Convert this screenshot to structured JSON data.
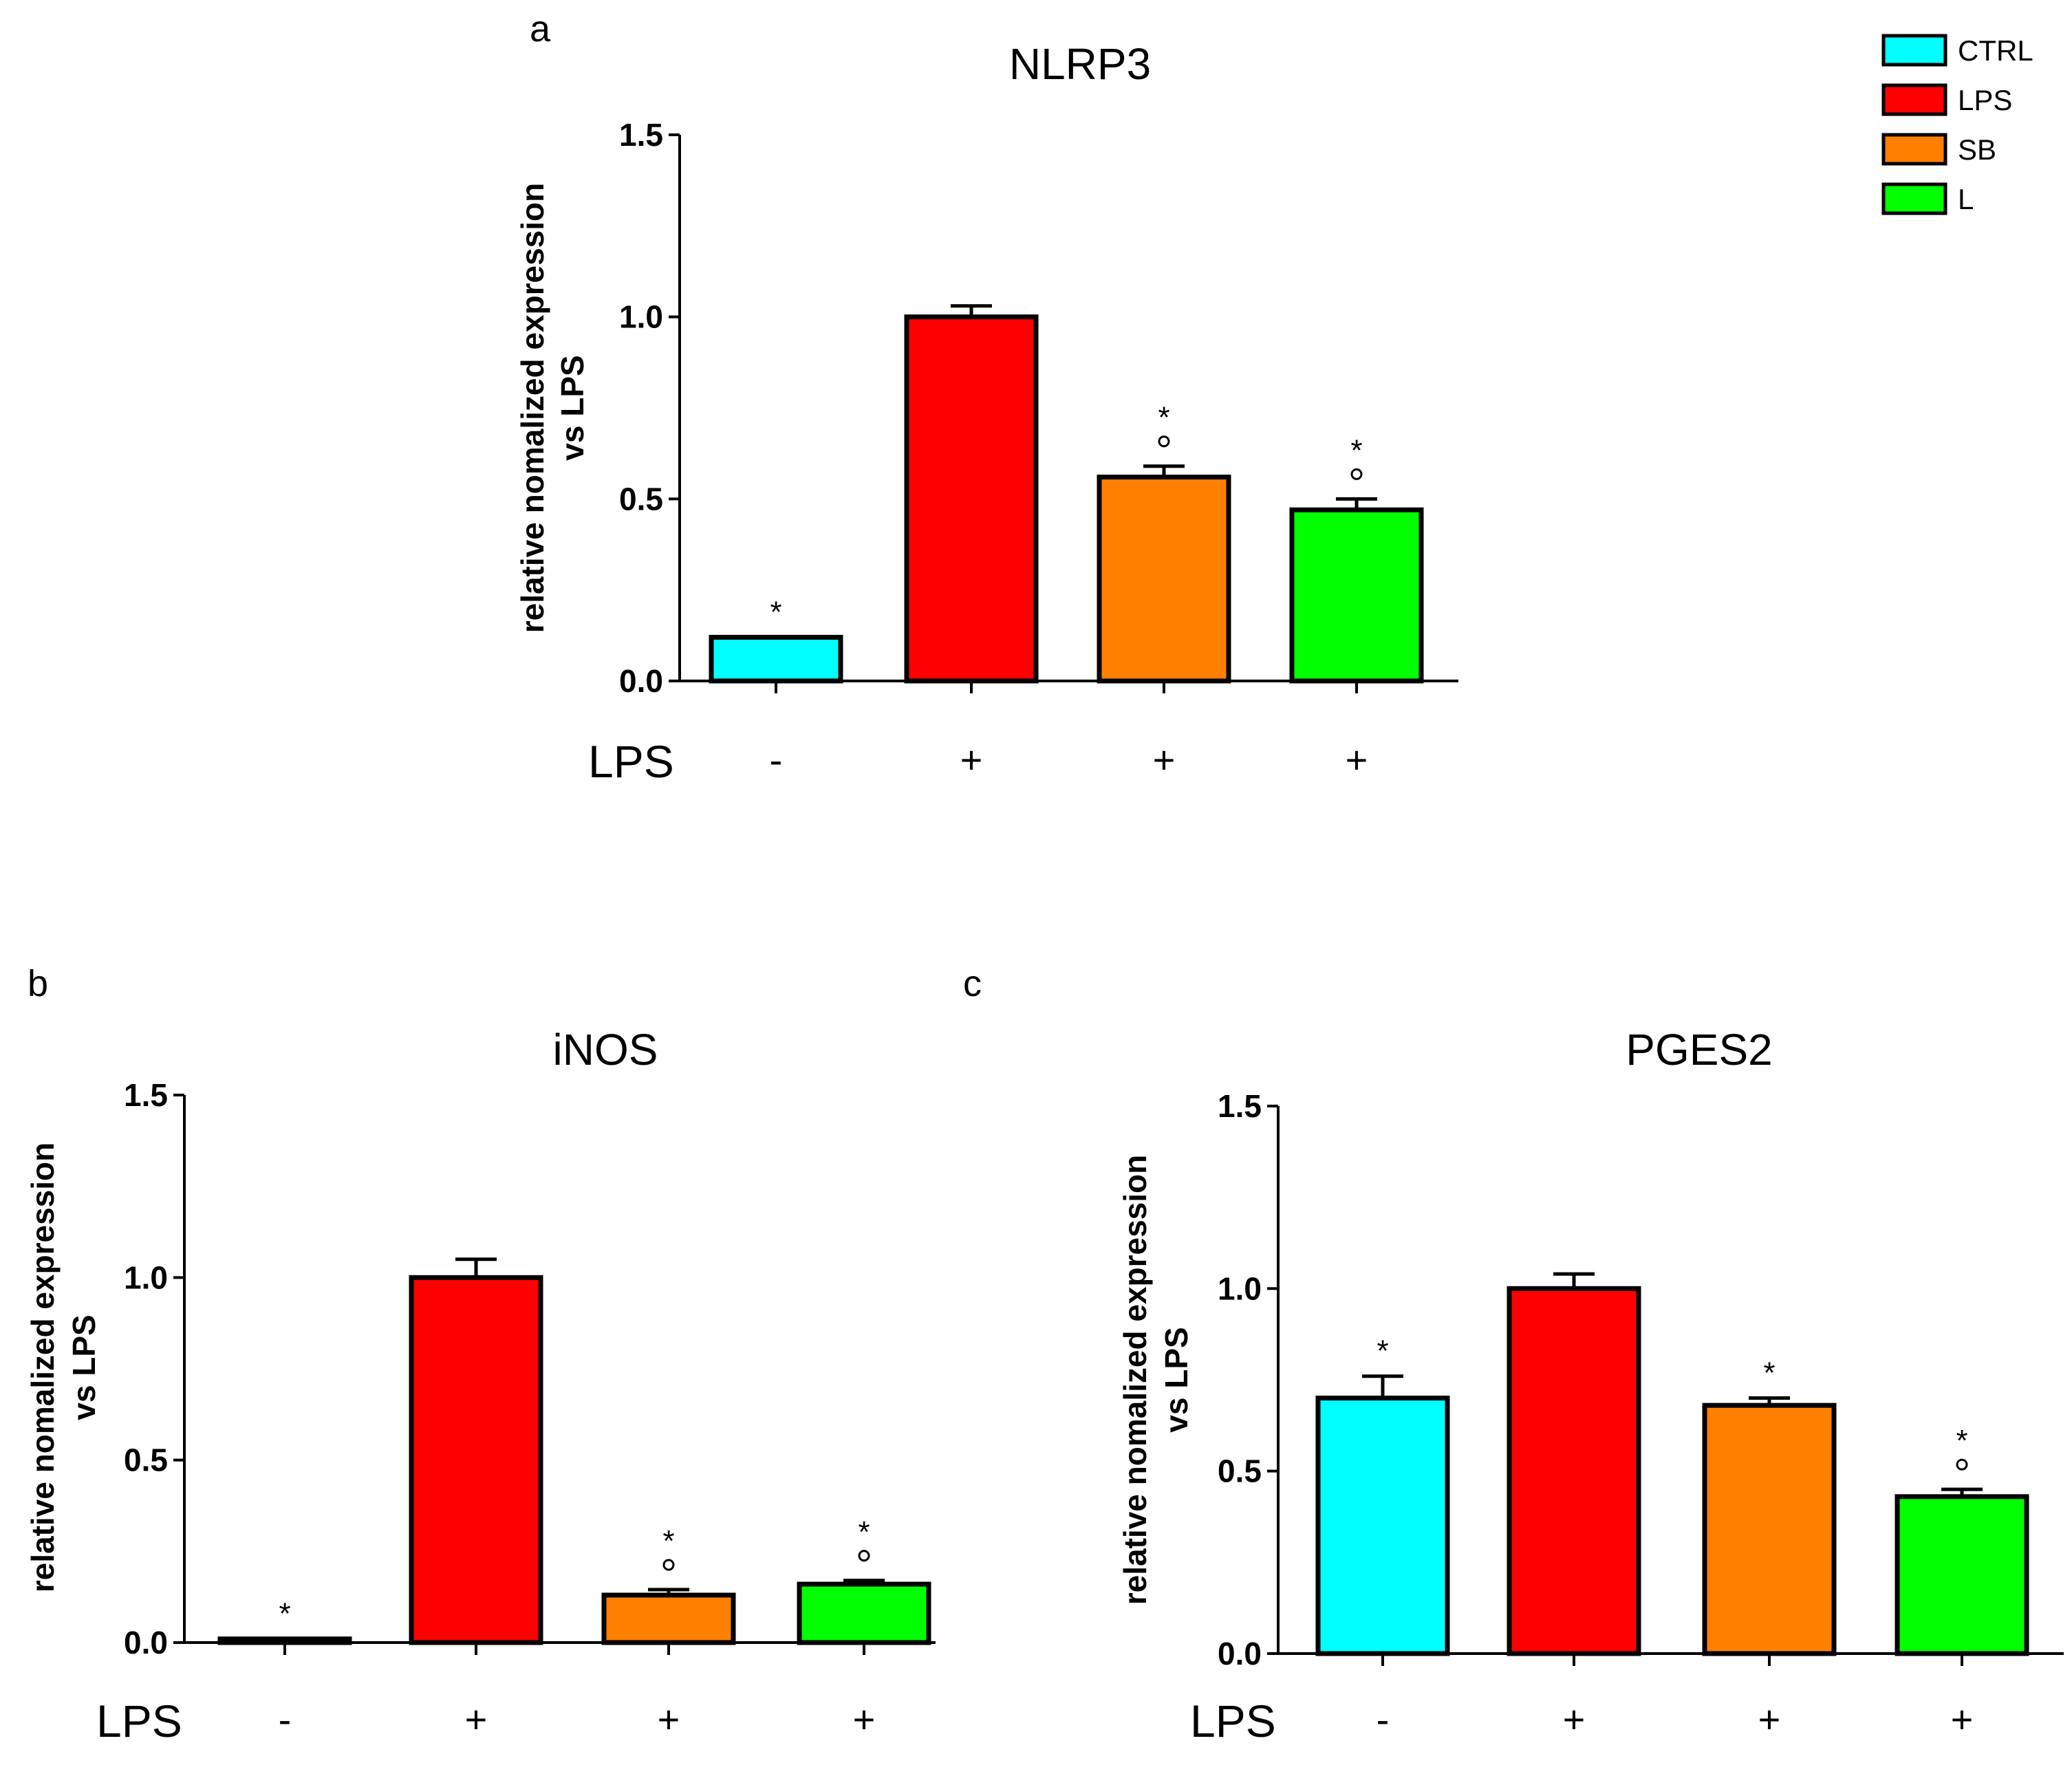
{
  "chart_data": [
    {
      "panel": "a",
      "type": "bar",
      "title": "NLRP3",
      "ylabel": [
        "relative nomalized expression",
        "vs LPS"
      ],
      "ylim": [
        0,
        1.5
      ],
      "yticks": [
        "0.0",
        "0.5",
        "1.0",
        "1.5"
      ],
      "categories": [
        "CTRL",
        "LPS",
        "SB",
        "L"
      ],
      "values": [
        0.12,
        1.0,
        0.56,
        0.47
      ],
      "errors": [
        0.0,
        0.03,
        0.03,
        0.03
      ],
      "row_label": "LPS",
      "lps_signs": [
        "-",
        "+",
        "+",
        "+"
      ],
      "asterisks": [
        "*",
        "",
        "*",
        "*"
      ],
      "circles": [
        false,
        false,
        true,
        true
      ]
    },
    {
      "panel": "b",
      "type": "bar",
      "title": "iNOS",
      "ylabel": [
        "relative nomalized expression",
        "vs LPS"
      ],
      "ylim": [
        0,
        1.5
      ],
      "yticks": [
        "0.0",
        "0.5",
        "1.0",
        "1.5"
      ],
      "categories": [
        "CTRL",
        "LPS",
        "SB",
        "L"
      ],
      "values": [
        0.01,
        1.0,
        0.13,
        0.16
      ],
      "errors": [
        0.0,
        0.05,
        0.015,
        0.01
      ],
      "row_label": "LPS",
      "lps_signs": [
        "-",
        "+",
        "+",
        "+"
      ],
      "asterisks": [
        "*",
        "",
        "*",
        "*"
      ],
      "circles": [
        false,
        false,
        true,
        true
      ]
    },
    {
      "panel": "c",
      "type": "bar",
      "title": "PGES2",
      "ylabel": [
        "relative nomalized expression",
        "vs LPS"
      ],
      "ylim": [
        0,
        1.5
      ],
      "yticks": [
        "0.0",
        "0.5",
        "1.0",
        "1.5"
      ],
      "categories": [
        "CTRL",
        "LPS",
        "SB",
        "L"
      ],
      "values": [
        0.7,
        1.0,
        0.68,
        0.43
      ],
      "errors": [
        0.06,
        0.04,
        0.02,
        0.02
      ],
      "row_label": "LPS",
      "lps_signs": [
        "-",
        "+",
        "+",
        "+"
      ],
      "asterisks": [
        "*",
        "",
        "*",
        "*"
      ],
      "circles": [
        false,
        false,
        false,
        true
      ]
    }
  ],
  "legend": [
    {
      "label": "CTRL",
      "color": "#00ffff"
    },
    {
      "label": "LPS",
      "color": "#ff0000"
    },
    {
      "label": "SB",
      "color": "#ff8000"
    },
    {
      "label": "L",
      "color": "#00ff00"
    }
  ]
}
